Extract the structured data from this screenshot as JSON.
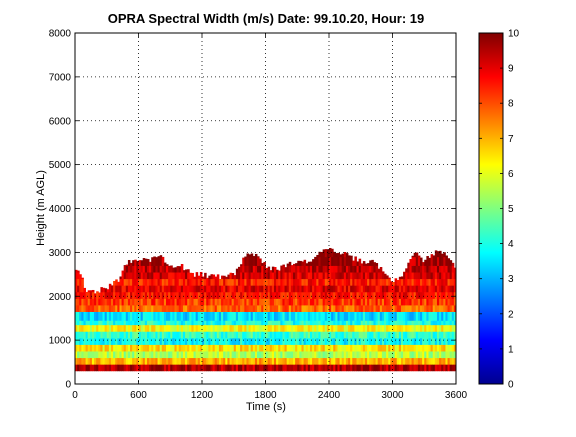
{
  "chart_data": {
    "type": "heatmap",
    "title": "OPRA Spectral Width (m/s)  Date: 99.10.20, Hour: 19",
    "xlabel": "Time (s)",
    "ylabel": "Height (m AGL)",
    "xlim": [
      0,
      3600
    ],
    "ylim": [
      0,
      8000
    ],
    "xticks": [
      0,
      600,
      1200,
      1800,
      2400,
      3000,
      3600
    ],
    "yticks": [
      0,
      1000,
      2000,
      3000,
      4000,
      5000,
      6000,
      7000,
      8000
    ],
    "grid": true,
    "colorbar": {
      "range": [
        0,
        10
      ],
      "ticks": [
        0,
        1,
        2,
        3,
        4,
        5,
        6,
        7,
        8,
        9,
        10
      ],
      "colormap": "jet"
    },
    "bands": [
      {
        "bottom": 300,
        "top": 450,
        "value": 9.5
      },
      {
        "bottom": 450,
        "top": 600,
        "value": 7.0
      },
      {
        "bottom": 600,
        "top": 750,
        "value": 5.5
      },
      {
        "bottom": 750,
        "top": 900,
        "value": 6.5
      },
      {
        "bottom": 900,
        "top": 1050,
        "value": 3.8
      },
      {
        "bottom": 1050,
        "top": 1200,
        "value": 4.3
      },
      {
        "bottom": 1200,
        "top": 1350,
        "value": 6.2
      },
      {
        "bottom": 1350,
        "top": 1450,
        "value": 4.0
      },
      {
        "bottom": 1450,
        "top": 1650,
        "value": 3.5
      },
      {
        "bottom": 1650,
        "top": 1800,
        "value": 7.8
      },
      {
        "bottom": 1800,
        "top": 1950,
        "value": 8.2
      },
      {
        "bottom": 1950,
        "top": 2100,
        "value": 8.6
      },
      {
        "bottom": 2100,
        "top": 2250,
        "value": 9.0
      },
      {
        "bottom": 2250,
        "top": 2400,
        "value": 8.5
      },
      {
        "bottom": 2400,
        "top": 2550,
        "value": 9.2
      },
      {
        "bottom": 2550,
        "top": 2700,
        "value": 9.4
      },
      {
        "bottom": 2700,
        "top": 2900,
        "value": 9.6
      },
      {
        "bottom": 2900,
        "top": 3100,
        "value": 9.8
      }
    ],
    "echo_top": {
      "times": [
        0,
        60,
        100,
        200,
        300,
        420,
        500,
        600,
        700,
        800,
        900,
        1000,
        1100,
        1200,
        1300,
        1400,
        1500,
        1600,
        1700,
        1800,
        1900,
        2000,
        2100,
        2200,
        2300,
        2400,
        2500,
        2600,
        2700,
        2800,
        2900,
        3000,
        3100,
        3200,
        3300,
        3400,
        3500,
        3600
      ],
      "heights": [
        2600,
        2500,
        2100,
        2100,
        2200,
        2400,
        2800,
        2850,
        2800,
        2900,
        2700,
        2700,
        2500,
        2500,
        2450,
        2450,
        2500,
        2900,
        2950,
        2700,
        2600,
        2700,
        2800,
        2800,
        2950,
        3100,
        3000,
        2900,
        2800,
        2800,
        2600,
        2300,
        2500,
        3000,
        2800,
        3000,
        3000,
        2600
      ]
    }
  }
}
